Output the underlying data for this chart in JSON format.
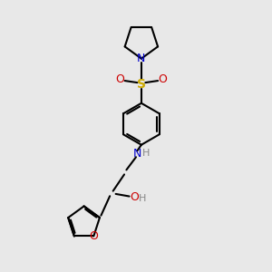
{
  "background_color": "#e8e8e8",
  "bond_color": "#000000",
  "nitrogen_color": "#0000cc",
  "oxygen_color": "#cc0000",
  "sulfur_color": "#ccaa00",
  "hydrogen_color": "#888888",
  "line_width": 1.5,
  "figure_size": [
    3.0,
    3.0
  ],
  "dpi": 100,
  "xlim": [
    0,
    10
  ],
  "ylim": [
    0,
    10
  ]
}
